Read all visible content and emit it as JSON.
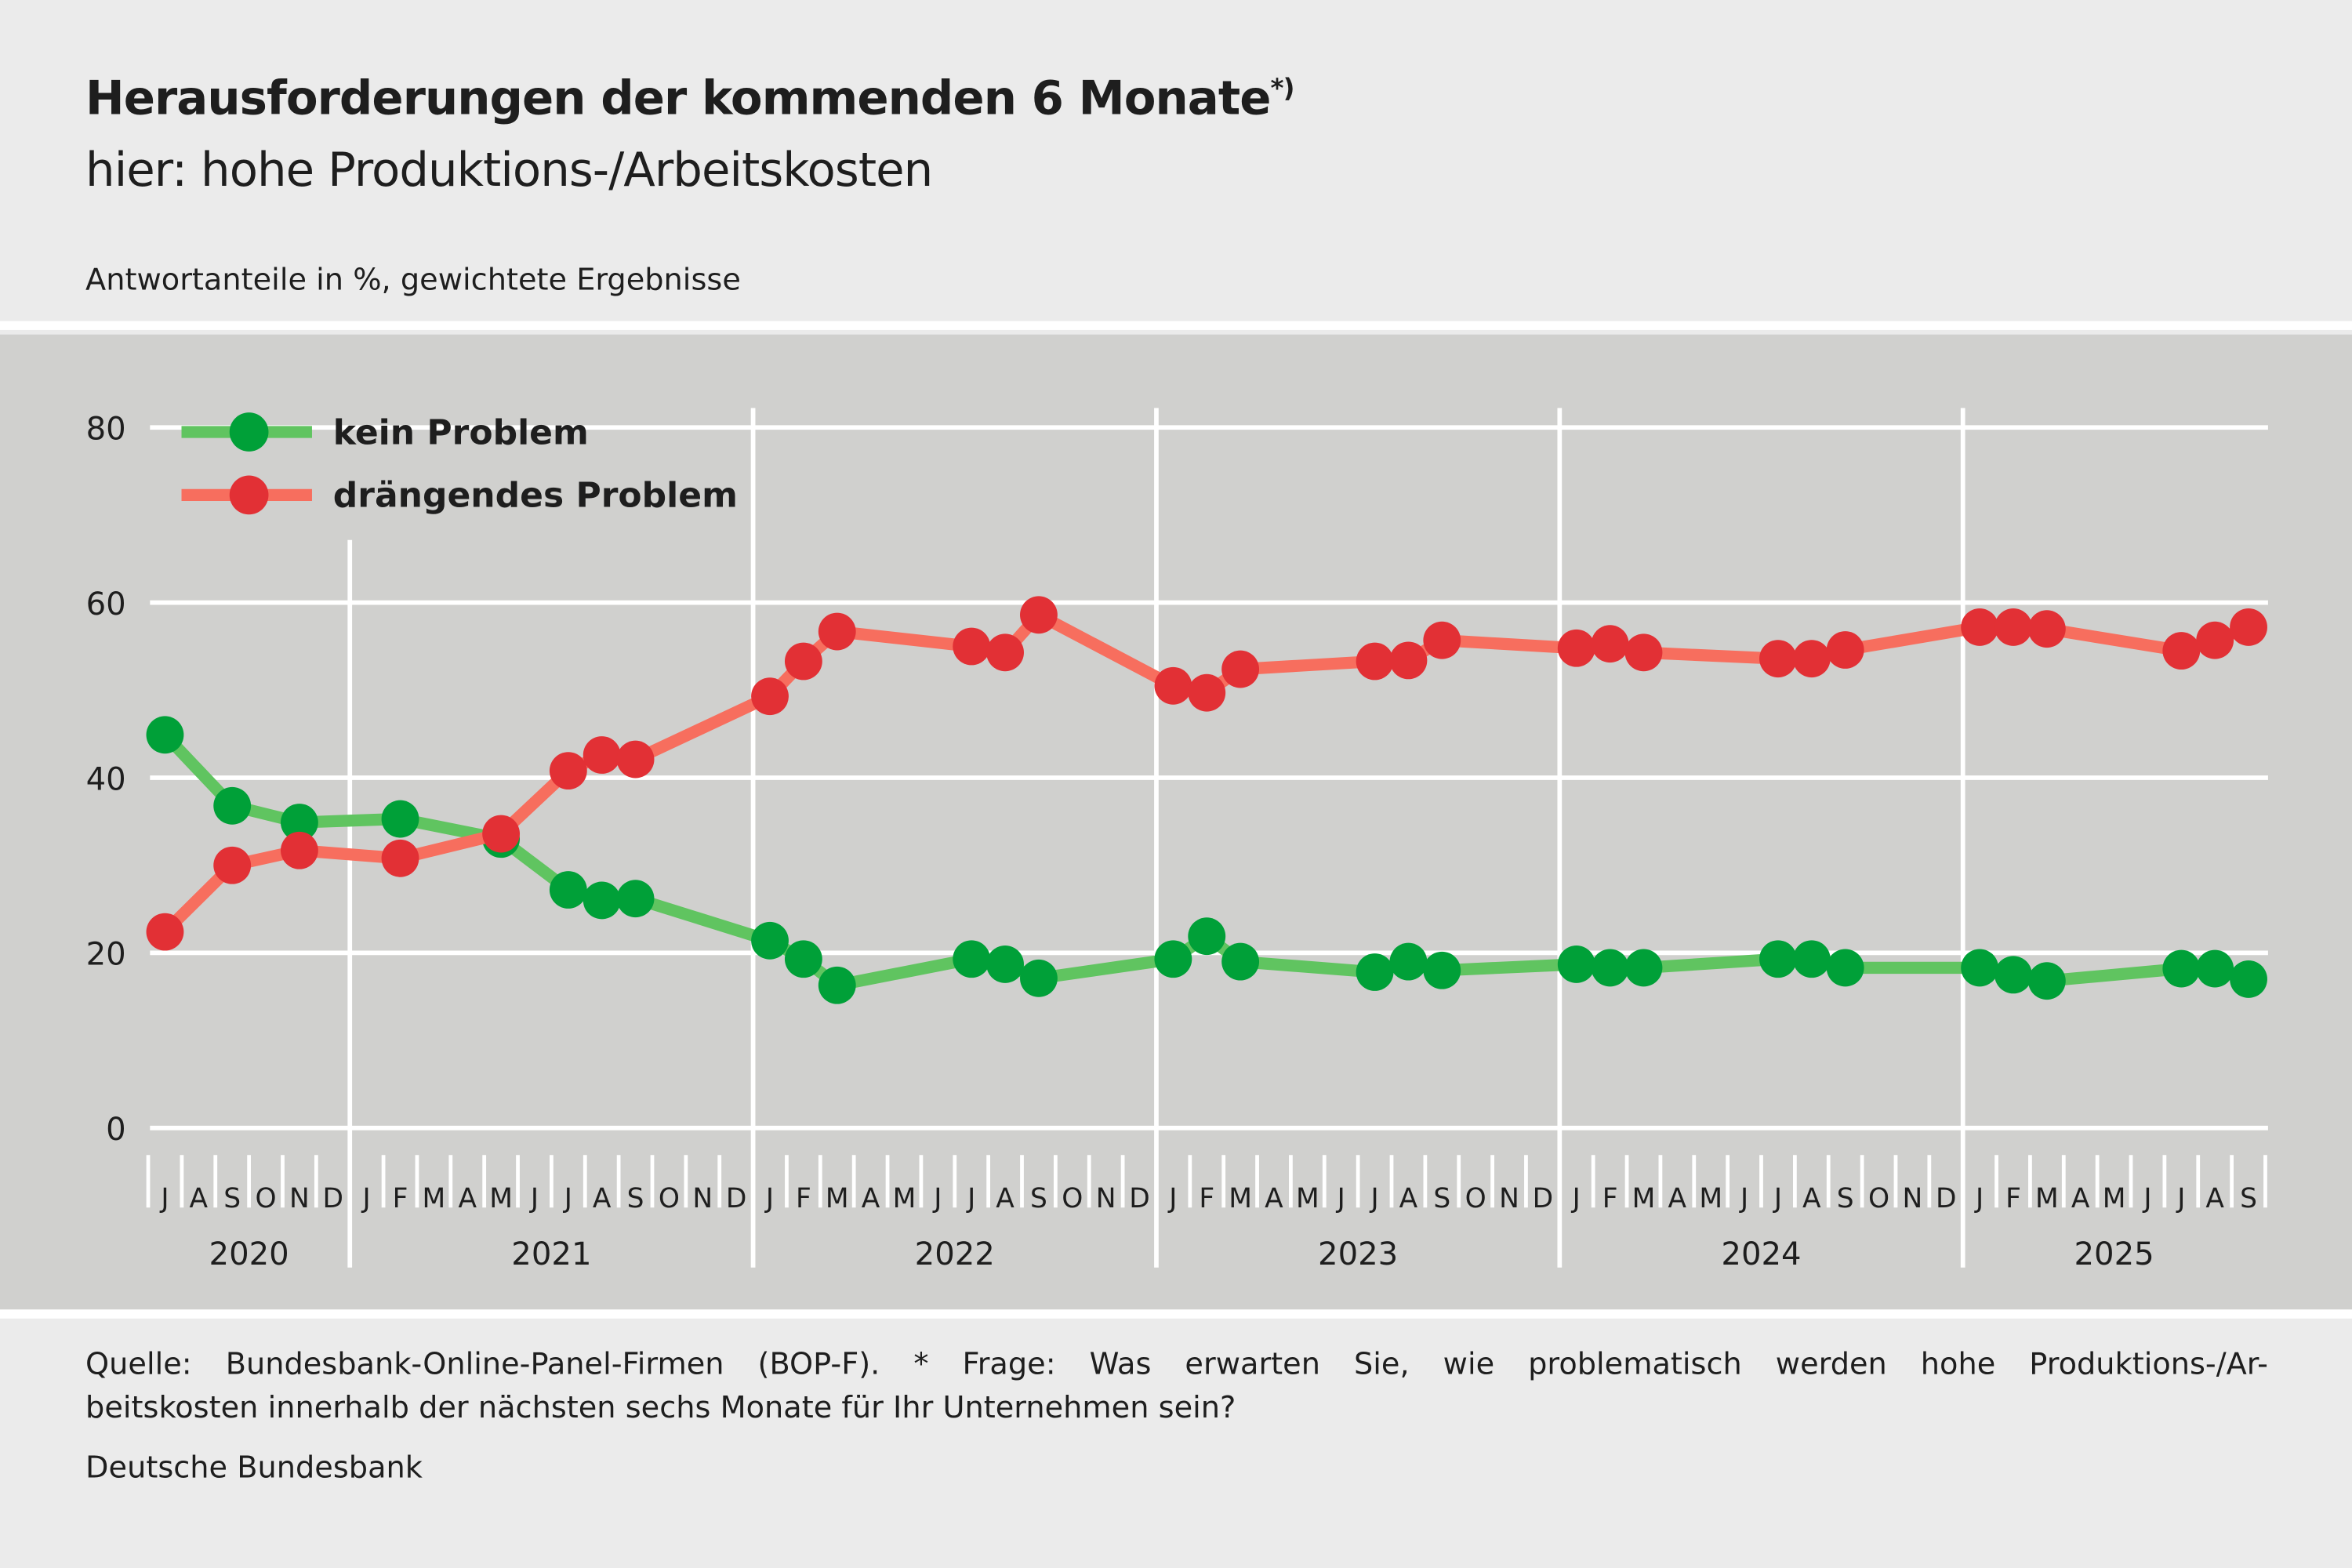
{
  "header": {
    "title": "Herausforderungen der kommenden 6 Monate",
    "title_footnote_mark": "*)",
    "subtitle": "hier: hohe Produktions-/Arbeitskosten",
    "unit_note": "Antwortanteile in %, gewichtete Ergebnisse"
  },
  "footer": {
    "source_line1": "Quelle: Bundesbank-Online-Panel-Firmen (BOP-F). * Frage: Was erwarten Sie, wie problematisch werden hohe Produktions-/Ar-",
    "source_line2": "beitskosten innerhalb der nächsten sechs Monate für Ihr Unternehmen sein?",
    "publisher": "Deutsche Bundesbank"
  },
  "chart_data": {
    "type": "line",
    "title": "Herausforderungen der kommenden 6 Monate",
    "ylabel": "Antwortanteile in %, gewichtete Ergebnisse",
    "ylim": [
      0,
      80
    ],
    "yticks": [
      0,
      20,
      40,
      60,
      80
    ],
    "grid": true,
    "legend_position": "top-left",
    "x_range": [
      "2020-07",
      "2025-09"
    ],
    "month_letters": [
      "J",
      "F",
      "M",
      "A",
      "M",
      "J",
      "J",
      "A",
      "S",
      "O",
      "N",
      "D"
    ],
    "years": [
      "2020",
      "2021",
      "2022",
      "2023",
      "2024",
      "2025"
    ],
    "series": [
      {
        "name": "kein Problem",
        "line_color": "#60c460",
        "marker_color": "#00a038",
        "points": [
          [
            "2020-07",
            44.9
          ],
          [
            "2020-09",
            36.8
          ],
          [
            "2020-11",
            34.9
          ],
          [
            "2021-02",
            35.3
          ],
          [
            "2021-05",
            33.0
          ],
          [
            "2021-07",
            27.2
          ],
          [
            "2021-08",
            26.0
          ],
          [
            "2021-09",
            26.2
          ],
          [
            "2022-01",
            21.4
          ],
          [
            "2022-02",
            19.3
          ],
          [
            "2022-03",
            16.3
          ],
          [
            "2022-07",
            19.3
          ],
          [
            "2022-08",
            18.7
          ],
          [
            "2022-09",
            17.1
          ],
          [
            "2023-01",
            19.3
          ],
          [
            "2023-02",
            21.9
          ],
          [
            "2023-03",
            19.0
          ],
          [
            "2023-07",
            17.8
          ],
          [
            "2023-08",
            19.0
          ],
          [
            "2023-09",
            18.0
          ],
          [
            "2024-01",
            18.7
          ],
          [
            "2024-02",
            18.3
          ],
          [
            "2024-03",
            18.3
          ],
          [
            "2024-07",
            19.3
          ],
          [
            "2024-08",
            19.3
          ],
          [
            "2024-09",
            18.3
          ],
          [
            "2025-01",
            18.3
          ],
          [
            "2025-02",
            17.5
          ],
          [
            "2025-03",
            16.8
          ],
          [
            "2025-07",
            18.2
          ],
          [
            "2025-08",
            18.2
          ],
          [
            "2025-09",
            17.0
          ]
        ]
      },
      {
        "name": "drängendes Problem",
        "line_color": "#f76e5e",
        "marker_color": "#e23035",
        "points": [
          [
            "2020-07",
            22.4
          ],
          [
            "2020-09",
            30.0
          ],
          [
            "2020-11",
            31.7
          ],
          [
            "2021-02",
            30.8
          ],
          [
            "2021-05",
            33.6
          ],
          [
            "2021-07",
            40.8
          ],
          [
            "2021-08",
            42.6
          ],
          [
            "2021-09",
            42.1
          ],
          [
            "2022-01",
            49.3
          ],
          [
            "2022-02",
            53.3
          ],
          [
            "2022-03",
            56.7
          ],
          [
            "2022-07",
            55.0
          ],
          [
            "2022-08",
            54.3
          ],
          [
            "2022-09",
            58.6
          ],
          [
            "2023-01",
            50.5
          ],
          [
            "2023-02",
            49.7
          ],
          [
            "2023-03",
            52.4
          ],
          [
            "2023-07",
            53.3
          ],
          [
            "2023-08",
            53.4
          ],
          [
            "2023-09",
            55.7
          ],
          [
            "2024-01",
            54.8
          ],
          [
            "2024-02",
            55.3
          ],
          [
            "2024-03",
            54.3
          ],
          [
            "2024-07",
            53.6
          ],
          [
            "2024-08",
            53.6
          ],
          [
            "2024-09",
            54.6
          ],
          [
            "2025-01",
            57.2
          ],
          [
            "2025-02",
            57.2
          ],
          [
            "2025-03",
            57.0
          ],
          [
            "2025-07",
            54.5
          ],
          [
            "2025-08",
            55.7
          ],
          [
            "2025-09",
            57.2
          ]
        ]
      }
    ]
  }
}
